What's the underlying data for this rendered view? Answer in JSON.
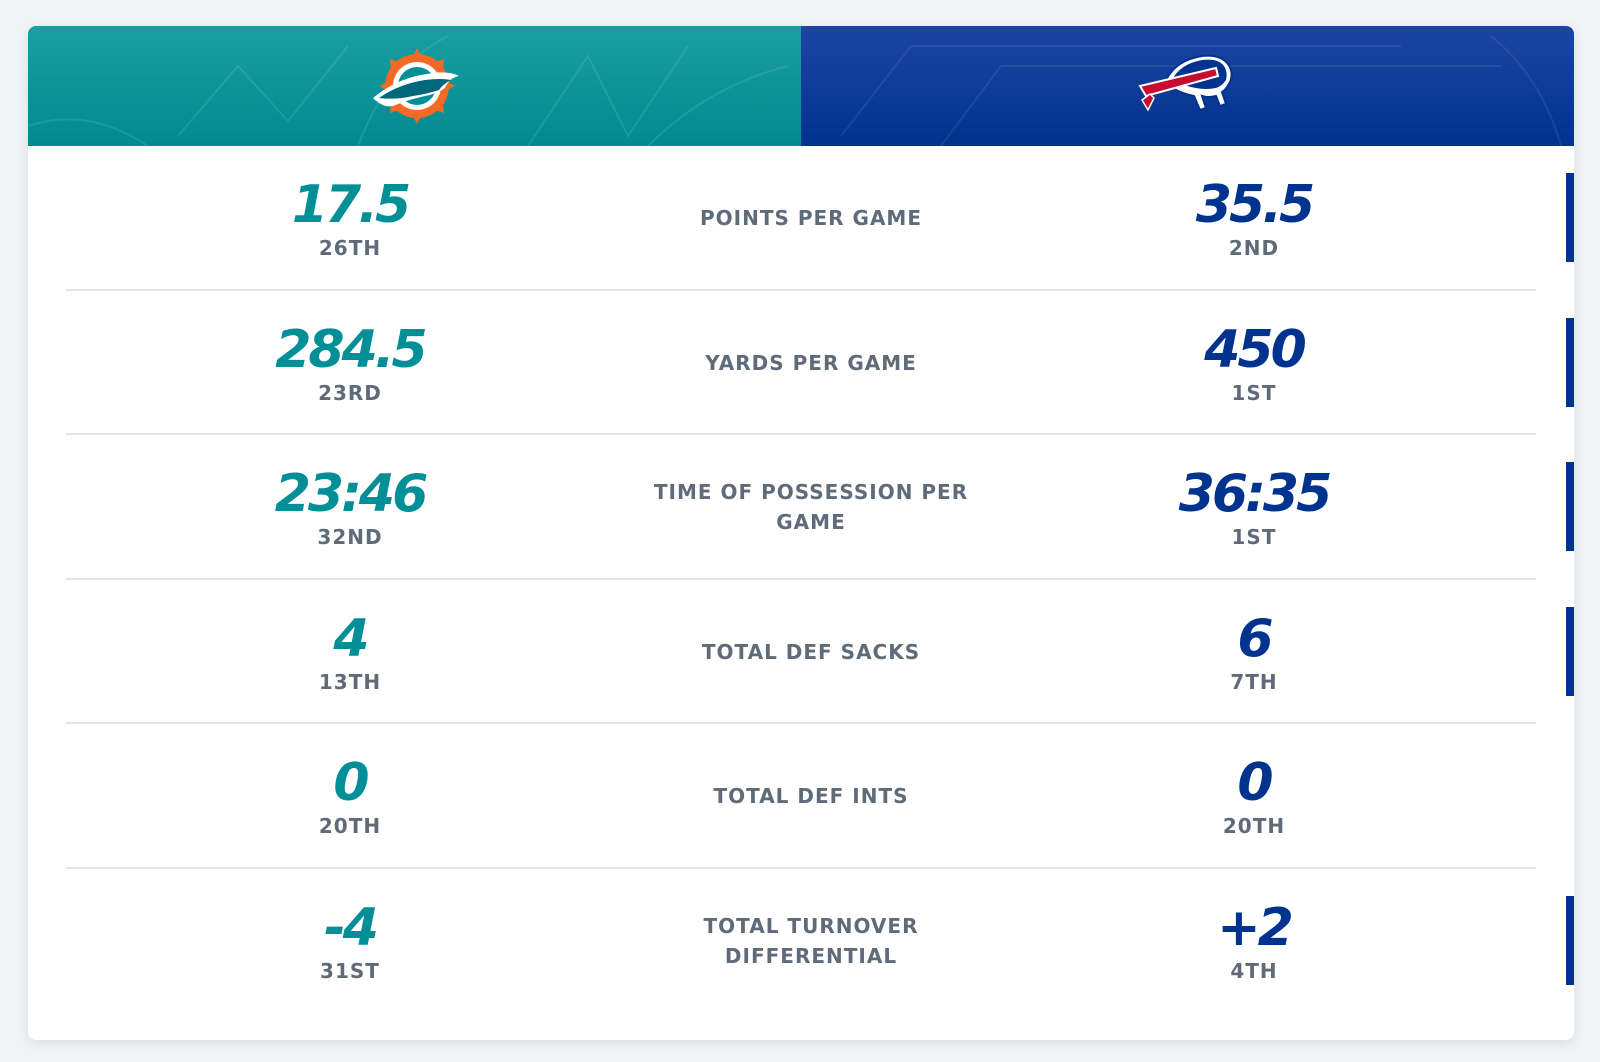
{
  "teams": {
    "left": {
      "logo_icon": "dolphins-logo-icon",
      "color": "#008e97"
    },
    "right": {
      "logo_icon": "bills-logo-icon",
      "color": "#00338d"
    }
  },
  "label_color": "#5f6b78",
  "stats": [
    {
      "label": "POINTS PER GAME",
      "left_value": "17.5",
      "left_rank": "26TH",
      "right_value": "35.5",
      "right_rank": "2ND"
    },
    {
      "label": "YARDS PER GAME",
      "left_value": "284.5",
      "left_rank": "23RD",
      "right_value": "450",
      "right_rank": "1ST"
    },
    {
      "label": "TIME OF POSSESSION PER GAME",
      "left_value": "23:46",
      "left_rank": "32ND",
      "right_value": "36:35",
      "right_rank": "1ST"
    },
    {
      "label": "TOTAL DEF SACKS",
      "left_value": "4",
      "left_rank": "13TH",
      "right_value": "6",
      "right_rank": "7TH"
    },
    {
      "label": "TOTAL DEF INTS",
      "left_value": "0",
      "left_rank": "20TH",
      "right_value": "0",
      "right_rank": "20TH"
    },
    {
      "label": "TOTAL TURNOVER DIFFERENTIAL",
      "left_value": "-4",
      "left_rank": "31ST",
      "right_value": "+2",
      "right_rank": "4TH"
    }
  ]
}
